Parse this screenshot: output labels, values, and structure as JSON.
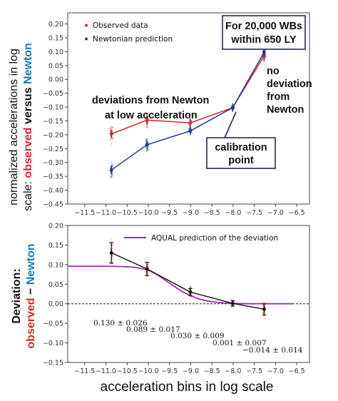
{
  "chart_data": [
    {
      "type": "line",
      "ylabel": {
        "line1": "normalized accelerations in log",
        "line2_prefix": "scale: ",
        "observed": "observed",
        "versus": " versus ",
        "newton": "Newton"
      },
      "x_ticks": [
        "−11.5",
        "−11.0",
        "−10.5",
        "−10.0",
        "−9.5",
        "−9.0",
        "−8.5",
        "−8.0",
        "−7.5",
        "−7.0",
        "−6.5"
      ],
      "x_tick_values": [
        -11.5,
        -11.0,
        -10.5,
        -10.0,
        -9.5,
        -9.0,
        -8.5,
        -8.0,
        -7.5,
        -7.0,
        -6.5
      ],
      "y_ticks": [
        "0.20",
        "0.15",
        "0.10",
        "0.05",
        "0.00",
        "−0.05",
        "−0.10",
        "−0.15",
        "−0.20",
        "−0.25",
        "−0.30",
        "−0.35",
        "−0.40",
        "−0.45"
      ],
      "y_tick_values": [
        0.2,
        0.15,
        0.1,
        0.05,
        0.0,
        -0.05,
        -0.1,
        -0.15,
        -0.2,
        -0.25,
        -0.3,
        -0.35,
        -0.4,
        -0.45
      ],
      "xlim": [
        -11.9,
        -6.2
      ],
      "ylim": [
        -0.45,
        0.24
      ],
      "series": [
        {
          "name": "Observed data",
          "color": "#d62728",
          "x": [
            -10.87,
            -10.03,
            -9.01,
            -8.01,
            -7.27
          ],
          "y": [
            -0.197,
            -0.147,
            -0.157,
            -0.102,
            0.085
          ]
        },
        {
          "name": "Newtonian prediction",
          "color": "#1f3a93",
          "x": [
            -10.87,
            -10.03,
            -9.01,
            -8.01,
            -7.27
          ],
          "y": [
            -0.327,
            -0.236,
            -0.186,
            -0.102,
            0.098
          ]
        }
      ],
      "annotations": {
        "box_line1": "For 20,000 WBs",
        "box_line2": "within 650 LY",
        "deviation_line1": "deviations from Newton",
        "deviation_line2": "at low acceleration",
        "nodev_line1": "no",
        "nodev_line2": "deviation",
        "nodev_line3": "from",
        "nodev_line4": "Newton",
        "calib_line1": "calibration",
        "calib_line2": "point"
      }
    },
    {
      "type": "line",
      "ylabel": {
        "line1": "Deviation:",
        "observed": "observed",
        "minus": " − ",
        "newton": "Newton"
      },
      "xlabel": "acceleration bins in log scale",
      "x_ticks": [
        "−11.5",
        "−11.0",
        "−10.5",
        "−10.0",
        "−9.5",
        "−9.0",
        "−8.5",
        "−8.0",
        "−7.5",
        "−7.0",
        "−6.5"
      ],
      "x_tick_values": [
        -11.5,
        -11.0,
        -10.5,
        -10.0,
        -9.5,
        -9.0,
        -8.5,
        -8.0,
        -7.5,
        -7.0,
        -6.5
      ],
      "y_ticks": [
        "0.20",
        "0.15",
        "0.10",
        "0.05",
        "0.00",
        "−0.05",
        "−0.10",
        "−0.15"
      ],
      "y_tick_values": [
        0.2,
        0.15,
        0.1,
        0.05,
        0.0,
        -0.05,
        -0.1,
        -0.15
      ],
      "xlim": [
        -11.9,
        -6.2
      ],
      "ylim": [
        -0.15,
        0.2
      ],
      "legend_label": "AQUAL prediction of the deviation",
      "legend_color": "#9b30b5",
      "series": [
        {
          "x": [
            -10.87,
            -10.03,
            -9.01,
            -8.01,
            -7.27
          ],
          "y": [
            0.13,
            0.089,
            0.03,
            0.001,
            -0.014
          ],
          "err": [
            0.026,
            0.017,
            0.009,
            0.007,
            0.014
          ]
        }
      ],
      "aqual_curve": {
        "x": [
          -11.9,
          -11.0,
          -10.6,
          -10.3,
          -10.0,
          -9.8,
          -9.6,
          -9.4,
          -9.2,
          -9.0,
          -8.8,
          -8.6,
          -8.4,
          -8.2,
          -8.0,
          -7.6,
          -7.2,
          -6.6
        ],
        "y": [
          0.096,
          0.096,
          0.095,
          0.093,
          0.086,
          0.075,
          0.06,
          0.045,
          0.031,
          0.02,
          0.012,
          0.007,
          0.004,
          0.002,
          0.001,
          0.0,
          0.0,
          0.0
        ]
      },
      "value_labels": [
        "0.130 ± 0.026",
        "0.089 ± 0.017",
        "0.030 ± 0.009",
        "0.001 ± 0.007",
        "−0.014 ± 0.014"
      ]
    }
  ]
}
